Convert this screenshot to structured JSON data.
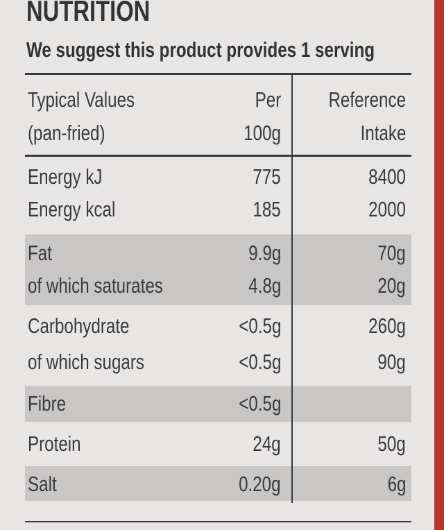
{
  "header": {
    "title": "NUTRITION",
    "subtitle": "We suggest this product provides 1 serving"
  },
  "table": {
    "columns": [
      [
        "Typical Values",
        "(pan-fried)"
      ],
      [
        "Per",
        "100g"
      ],
      [
        "Reference",
        "Intake"
      ]
    ],
    "rows": [
      [
        "Energy kJ",
        "775",
        "8400"
      ],
      [
        "Energy kcal",
        "185",
        "2000"
      ],
      [
        "Fat",
        "9.9g",
        "70g"
      ],
      [
        "of which saturates",
        "4.8g",
        "20g"
      ],
      [
        "Carbohydrate",
        "<0.5g",
        "260g"
      ],
      [
        "of which sugars",
        "<0.5g",
        "90g"
      ],
      [
        "Fibre",
        "<0.5g"
      ],
      [
        "Protein",
        "24g",
        "50g"
      ],
      [
        "Salt",
        "0.20g",
        "6g"
      ]
    ]
  }
}
